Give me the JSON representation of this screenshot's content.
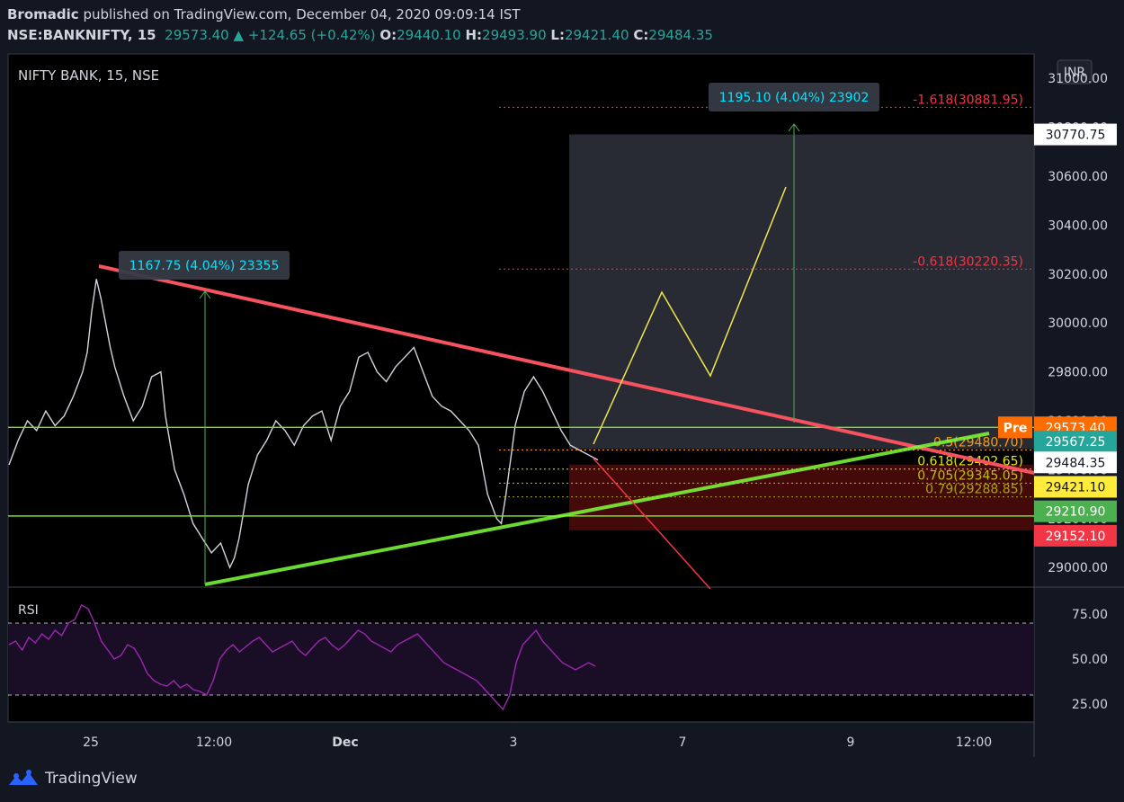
{
  "header": {
    "author": "Bromadic",
    "published_text": "published on TradingView.com, December 04, 2020 09:09:14 IST",
    "symbol": "NSE:BANKNIFTY, 15",
    "last": "29573.40",
    "change_arrow": "▲",
    "change": "+124.65 (+0.42%)",
    "o_label": "O:",
    "o": "29440.10",
    "h_label": "H:",
    "h": "29493.90",
    "l_label": "L:",
    "l": "29421.40",
    "c_label": "C:",
    "c": "29484.35"
  },
  "footer": {
    "brand": "TradingView",
    "logo_icon": "tradingview-logo-icon"
  },
  "chart_data": [
    {
      "type": "candlestick",
      "title": "NIFTY BANK, 15, NSE",
      "currency_button": "INR",
      "ylim": [
        28920,
        31100
      ],
      "y_tick_labels": [
        "31000.00",
        "30800.00",
        "30600.00",
        "30400.00",
        "30200.00",
        "30000.00",
        "29800.00",
        "29600.00",
        "29400.00",
        "29200.00",
        "29000.00"
      ],
      "y_ticks": [
        31000,
        30800,
        30600,
        30400,
        30200,
        30000,
        29800,
        29600,
        29400,
        29200,
        29000
      ],
      "x_tick_labels": [
        "25",
        "12:00",
        "Dec",
        "3",
        "7",
        "9",
        "12:00"
      ],
      "price_path": [
        [
          0,
          29420
        ],
        [
          2,
          29520
        ],
        [
          4,
          29600
        ],
        [
          6,
          29560
        ],
        [
          8,
          29640
        ],
        [
          10,
          29580
        ],
        [
          12,
          29620
        ],
        [
          14,
          29700
        ],
        [
          16,
          29800
        ],
        [
          17,
          29880
        ],
        [
          18,
          30050
        ],
        [
          19,
          30180
        ],
        [
          20,
          30100
        ],
        [
          22,
          29900
        ],
        [
          23,
          29820
        ],
        [
          25,
          29700
        ],
        [
          27,
          29600
        ],
        [
          29,
          29660
        ],
        [
          31,
          29780
        ],
        [
          33,
          29800
        ],
        [
          34,
          29620
        ],
        [
          36,
          29400
        ],
        [
          38,
          29300
        ],
        [
          40,
          29180
        ],
        [
          42,
          29120
        ],
        [
          44,
          29060
        ],
        [
          46,
          29100
        ],
        [
          48,
          29000
        ],
        [
          49,
          29040
        ],
        [
          50,
          29120
        ],
        [
          52,
          29340
        ],
        [
          54,
          29460
        ],
        [
          56,
          29520
        ],
        [
          58,
          29600
        ],
        [
          60,
          29560
        ],
        [
          62,
          29500
        ],
        [
          64,
          29580
        ],
        [
          66,
          29620
        ],
        [
          68,
          29640
        ],
        [
          70,
          29520
        ],
        [
          72,
          29660
        ],
        [
          74,
          29720
        ],
        [
          76,
          29860
        ],
        [
          78,
          29880
        ],
        [
          80,
          29800
        ],
        [
          82,
          29760
        ],
        [
          84,
          29820
        ],
        [
          86,
          29860
        ],
        [
          88,
          29900
        ],
        [
          90,
          29800
        ],
        [
          92,
          29700
        ],
        [
          94,
          29660
        ],
        [
          96,
          29640
        ],
        [
          98,
          29600
        ],
        [
          100,
          29560
        ],
        [
          102,
          29500
        ],
        [
          104,
          29300
        ],
        [
          106,
          29200
        ],
        [
          107,
          29180
        ],
        [
          108,
          29300
        ],
        [
          110,
          29580
        ],
        [
          112,
          29720
        ],
        [
          114,
          29780
        ],
        [
          116,
          29720
        ],
        [
          118,
          29640
        ],
        [
          120,
          29560
        ],
        [
          122,
          29500
        ],
        [
          124,
          29480
        ],
        [
          126,
          29460
        ],
        [
          128,
          29440
        ]
      ],
      "price_path_x_range": [
        0,
        128
      ],
      "horizontal_levels": [
        29573.4,
        29210.9
      ],
      "range_boxes": [
        {
          "from": 29484.35,
          "to": 30770.75,
          "color": "#363a45"
        },
        {
          "from": 29152.1,
          "to": 29421.1,
          "color": "#5b0c0c"
        }
      ],
      "fib_levels": [
        {
          "label": "-1.618(30881.95)",
          "price": 30881.95,
          "color": "#f23645"
        },
        {
          "label": "-0.618(30220.35)",
          "price": 30220.35,
          "color": "#f23645"
        },
        {
          "label": "0.5(29480.70)",
          "price": 29480.7,
          "color": "#ff9800"
        },
        {
          "label": "0.618(29402.65)",
          "price": 29402.65,
          "color": "#e6e600"
        },
        {
          "label": "0.705(29345.05)",
          "price": 29345.05,
          "color": "#c0c000"
        },
        {
          "label": "0.79(29288.85)",
          "price": 29288.85,
          "color": "#a8a800"
        }
      ],
      "measure_labels": [
        {
          "text": "1167.75 (4.04%) 23355"
        },
        {
          "text": "1195.10 (4.04%) 23902"
        }
      ],
      "price_badges": [
        {
          "text": "30770.75",
          "price": 30770.75,
          "bg": "#ffffff",
          "fg": "#131722"
        },
        {
          "text": "29573.40",
          "price": 29573.4,
          "bg": "#ff6d00",
          "fg": "#ffffff",
          "tag": "Pre"
        },
        {
          "text": "29567.25",
          "price": 29516,
          "bg": "#26a69a",
          "fg": "#ffffff"
        },
        {
          "text": "29484.35",
          "price": 29430,
          "bg": "#ffffff",
          "fg": "#131722"
        },
        {
          "text": "29421.10",
          "price": 29330,
          "bg": "#ffeb3b",
          "fg": "#131722"
        },
        {
          "text": "29210.90",
          "price": 29230,
          "bg": "#4caf50",
          "fg": "#ffffff"
        },
        {
          "text": "29152.10",
          "price": 29130,
          "bg": "#f23645",
          "fg": "#ffffff"
        }
      ]
    },
    {
      "type": "line",
      "title": "RSI",
      "ylim": [
        15,
        90
      ],
      "y_ticks": [
        75,
        50,
        25
      ],
      "y_tick_labels": [
        "75.00",
        "50.00",
        "25.00"
      ],
      "band": [
        30,
        70
      ],
      "values": [
        58,
        60,
        55,
        62,
        59,
        64,
        61,
        66,
        63,
        70,
        72,
        80,
        78,
        70,
        60,
        55,
        50,
        52,
        58,
        56,
        50,
        42,
        38,
        36,
        35,
        38,
        34,
        36,
        33,
        32,
        30,
        38,
        50,
        55,
        58,
        54,
        57,
        60,
        62,
        58,
        54,
        56,
        58,
        60,
        55,
        52,
        56,
        60,
        62,
        58,
        55,
        58,
        62,
        66,
        64,
        60,
        58,
        56,
        54,
        58,
        60,
        62,
        64,
        60,
        56,
        52,
        48,
        46,
        44,
        42,
        40,
        38,
        34,
        30,
        26,
        22,
        30,
        48,
        58,
        62,
        66,
        60,
        56,
        52,
        48,
        46,
        44,
        46,
        48,
        46
      ],
      "line_color": "#9c27b0"
    }
  ]
}
